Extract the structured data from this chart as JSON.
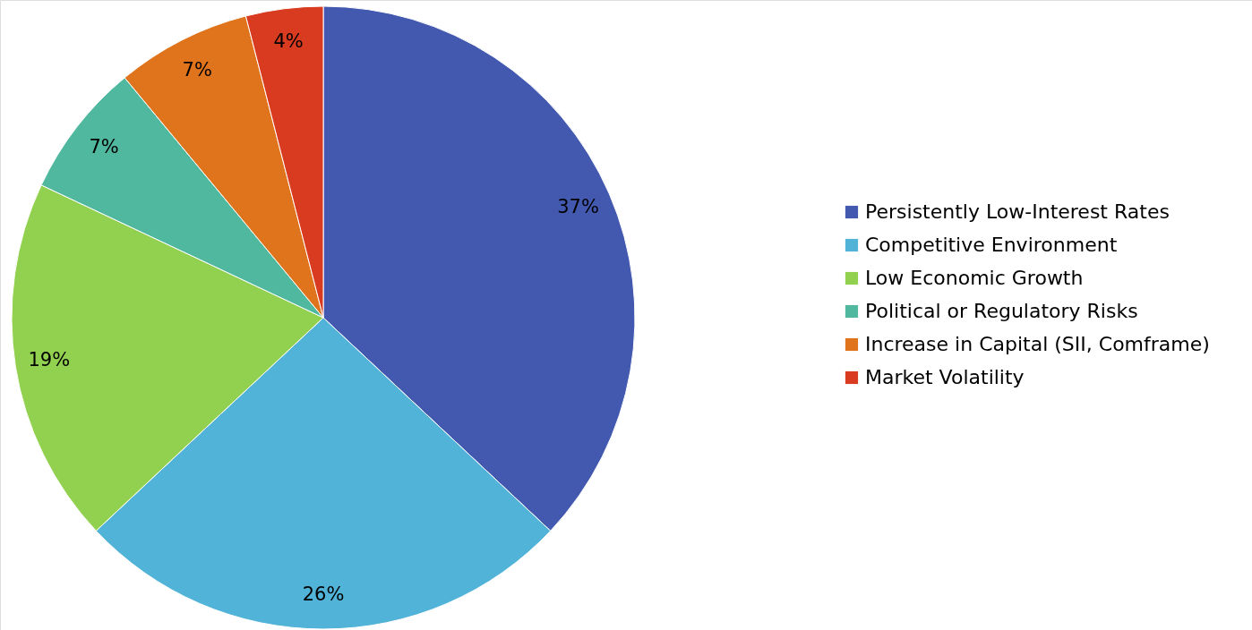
{
  "chart_data": {
    "type": "pie",
    "categories": [
      "Persistently Low-Interest Rates",
      "Competitive Environment",
      "Low Economic Growth",
      "Political or Regulatory Risks",
      "Increase in Capital (SII, Comframe)",
      "Market Volatility"
    ],
    "values": [
      37,
      26,
      19,
      7,
      7,
      4
    ],
    "colors": [
      "#4359b0",
      "#52b3d9",
      "#92d050",
      "#50b89f",
      "#e0741d",
      "#d83b20"
    ],
    "value_labels": [
      "37%",
      "26%",
      "19%",
      "7%",
      "7%",
      "4%"
    ],
    "legend": "right"
  }
}
